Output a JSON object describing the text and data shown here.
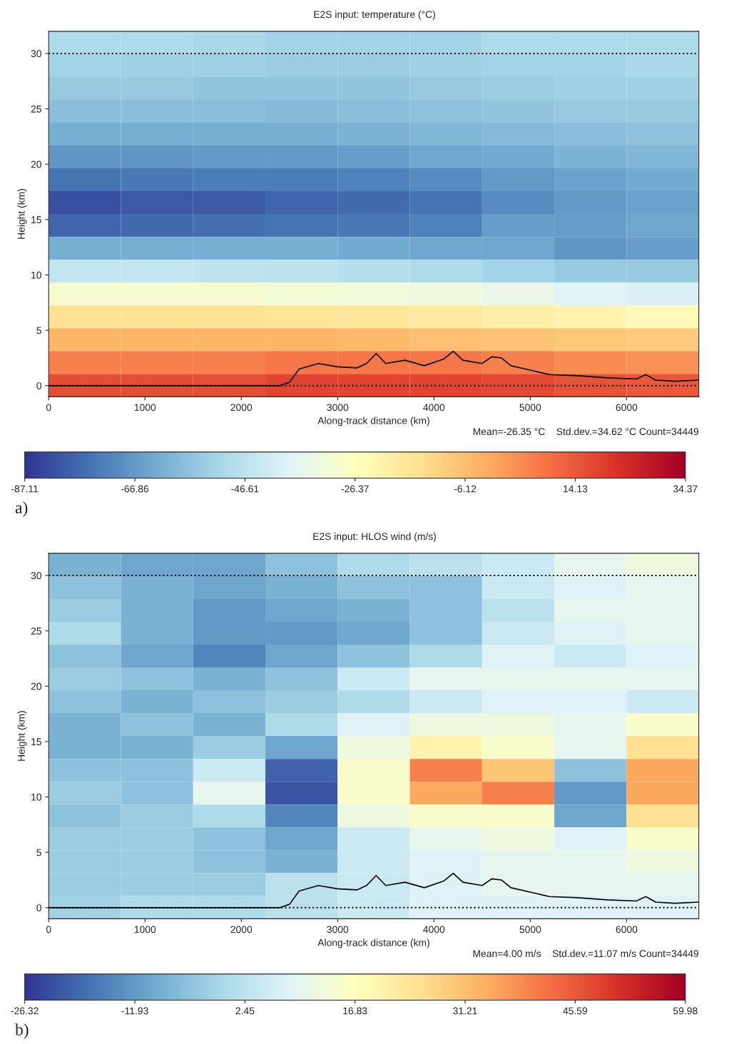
{
  "chart_data": [
    {
      "type": "heatmap",
      "title": "E2S input: temperature (°C)",
      "xlabel": "Along-track distance (km)",
      "ylabel": "Height (km)",
      "cells": [
        [
          -50,
          -50,
          -51,
          -52,
          -52,
          -52,
          -50,
          -50,
          -50
        ],
        [
          -52,
          -53,
          -53,
          -54,
          -54,
          -53,
          -52,
          -52,
          -51
        ],
        [
          -55,
          -55,
          -56,
          -56,
          -56,
          -55,
          -54,
          -53,
          -53
        ],
        [
          -58,
          -58,
          -58,
          -59,
          -58,
          -57,
          -56,
          -55,
          -55
        ],
        [
          -62,
          -62,
          -62,
          -62,
          -61,
          -60,
          -59,
          -58,
          -57
        ],
        [
          -68,
          -68,
          -67,
          -67,
          -66,
          -64,
          -63,
          -61,
          -60
        ],
        [
          -75,
          -74,
          -73,
          -73,
          -72,
          -70,
          -67,
          -65,
          -63
        ],
        [
          -82,
          -80,
          -80,
          -78,
          -77,
          -75,
          -70,
          -67,
          -65
        ],
        [
          -78,
          -77,
          -76,
          -75,
          -74,
          -72,
          -66,
          -66,
          -64
        ],
        [
          -62,
          -62,
          -62,
          -62,
          -63,
          -64,
          -64,
          -68,
          -66
        ],
        [
          -45,
          -45,
          -46,
          -47,
          -48,
          -50,
          -52,
          -55,
          -55
        ],
        [
          -30,
          -30,
          -30,
          -31,
          -32,
          -33,
          -35,
          -38,
          -40
        ],
        [
          -15,
          -15,
          -15,
          -16,
          -17,
          -18,
          -20,
          -22,
          -24
        ],
        [
          -4,
          -4,
          -4,
          -4,
          -5,
          -6,
          -7,
          -8,
          -9
        ],
        [
          6,
          6,
          6,
          8,
          8,
          8,
          6,
          4,
          3
        ],
        [
          16,
          16,
          16,
          18,
          18,
          18,
          17,
          15,
          14
        ]
      ],
      "xlim": [
        0,
        6750
      ],
      "ylim": [
        -1,
        32
      ],
      "xticks": [
        0,
        1000,
        2000,
        3000,
        4000,
        5000,
        6000
      ],
      "yticks": [
        0,
        5,
        10,
        15,
        20,
        25,
        30
      ],
      "clim": [
        -87.11,
        34.37
      ],
      "cticks": [
        -87.11,
        -66.86,
        -46.61,
        -26.37,
        -6.12,
        14.13,
        34.37
      ],
      "series": [
        {
          "type": "line",
          "color": "#000000",
          "x": [
            0,
            2400,
            2500,
            2600,
            2800,
            3000,
            3200,
            3300,
            3400,
            3500,
            3700,
            3900,
            4100,
            4200,
            4300,
            4500,
            4600,
            4700,
            4800,
            5000,
            5200,
            5500,
            5800,
            6100,
            6200,
            6300,
            6500,
            6750
          ],
          "values": [
            0,
            0,
            0.3,
            1.5,
            2,
            1.7,
            1.6,
            2,
            2.9,
            2,
            2.3,
            1.8,
            2.4,
            3.1,
            2.3,
            2,
            2.6,
            2.5,
            1.8,
            1.4,
            1,
            0.9,
            0.7,
            0.6,
            1,
            0.5,
            0.4,
            0.5
          ]
        }
      ],
      "ref_lines": [
        {
          "axis": "y",
          "value": 30,
          "line_style": "dotted",
          "color": "#000000"
        },
        {
          "axis": "y",
          "value": 0,
          "line_style": "dotted",
          "color": "#000000"
        }
      ],
      "grid": false,
      "annotations": [
        "Mean=-26.35 °C    Std.dev.=34.62 °C Count=34449",
        "a)"
      ]
    },
    {
      "type": "heatmap",
      "title": "E2S input: HLOS wind (m/s)",
      "xlabel": "Along-track distance (km)",
      "ylabel": "Height (km)",
      "cells": [
        [
          -8,
          -10,
          -10,
          -5,
          0,
          2,
          5,
          10,
          12
        ],
        [
          -5,
          -8,
          -10,
          -8,
          -5,
          -5,
          5,
          8,
          10
        ],
        [
          -3,
          -8,
          -12,
          -10,
          -8,
          -5,
          2,
          10,
          10
        ],
        [
          0,
          -8,
          -12,
          -12,
          -10,
          -5,
          5,
          8,
          10
        ],
        [
          -5,
          -10,
          -15,
          -10,
          -5,
          0,
          8,
          5,
          8
        ],
        [
          -3,
          -5,
          -8,
          -5,
          5,
          10,
          10,
          10,
          10
        ],
        [
          -5,
          -8,
          -5,
          -3,
          0,
          5,
          8,
          8,
          5
        ],
        [
          -8,
          -5,
          -8,
          0,
          8,
          12,
          12,
          10,
          15
        ],
        [
          -8,
          -8,
          -3,
          -10,
          12,
          20,
          15,
          10,
          25
        ],
        [
          -5,
          -5,
          5,
          -20,
          15,
          40,
          30,
          -5,
          35
        ],
        [
          -3,
          -5,
          10,
          -22,
          15,
          35,
          40,
          -12,
          35
        ],
        [
          -5,
          -3,
          0,
          -15,
          12,
          15,
          15,
          -10,
          25
        ],
        [
          -3,
          -3,
          -5,
          -10,
          5,
          10,
          12,
          8,
          15
        ],
        [
          -3,
          -3,
          -5,
          -8,
          5,
          8,
          10,
          10,
          12
        ],
        [
          -3,
          -3,
          -3,
          2,
          5,
          8,
          10,
          10,
          10
        ],
        [
          -2,
          0,
          0,
          2,
          5,
          8,
          8,
          8,
          8
        ]
      ],
      "xlim": [
        0,
        6750
      ],
      "ylim": [
        -1,
        32
      ],
      "xticks": [
        0,
        1000,
        2000,
        3000,
        4000,
        5000,
        6000
      ],
      "yticks": [
        0,
        5,
        10,
        15,
        20,
        25,
        30
      ],
      "clim": [
        -26.32,
        59.98
      ],
      "cticks": [
        -26.32,
        -11.93,
        2.45,
        16.83,
        31.21,
        45.59,
        59.98
      ],
      "series": [
        {
          "type": "line",
          "color": "#000000",
          "x": [
            0,
            2400,
            2500,
            2600,
            2800,
            3000,
            3200,
            3300,
            3400,
            3500,
            3700,
            3900,
            4100,
            4200,
            4300,
            4500,
            4600,
            4700,
            4800,
            5000,
            5200,
            5500,
            5800,
            6100,
            6200,
            6300,
            6500,
            6750
          ],
          "values": [
            0,
            0,
            0.3,
            1.5,
            2,
            1.7,
            1.6,
            2,
            2.9,
            2,
            2.3,
            1.8,
            2.4,
            3.1,
            2.3,
            2,
            2.6,
            2.5,
            1.8,
            1.4,
            1,
            0.9,
            0.7,
            0.6,
            1,
            0.5,
            0.4,
            0.5
          ]
        }
      ],
      "ref_lines": [
        {
          "axis": "y",
          "value": 30,
          "line_style": "dotted",
          "color": "#000000"
        },
        {
          "axis": "y",
          "value": 0,
          "line_style": "dotted",
          "color": "#000000"
        }
      ],
      "grid": false,
      "annotations": [
        "Mean=4.00 m/s    Std.dev.=11.07 m/s Count=34449",
        "b)"
      ]
    }
  ]
}
